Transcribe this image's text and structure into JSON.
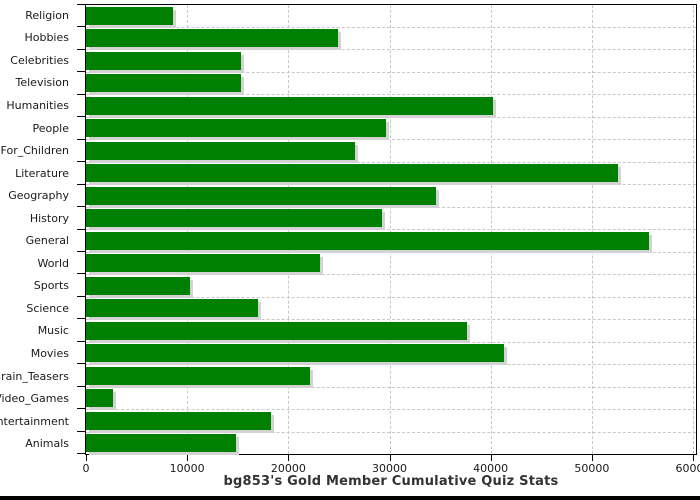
{
  "chart_data": {
    "type": "bar",
    "orientation": "horizontal",
    "title": "bg853's Gold Member Cumulative Quiz Stats",
    "categories": [
      "Religion",
      "Hobbies",
      "Celebrities",
      "Television",
      "Humanities",
      "People",
      "For_Children",
      "Literature",
      "Geography",
      "History",
      "General",
      "World",
      "Sports",
      "Science",
      "Music",
      "Movies",
      "Brain_Teasers",
      "Video_Games",
      "Entertainment",
      "Animals"
    ],
    "values": [
      8600,
      24900,
      15300,
      15300,
      40200,
      29700,
      26600,
      52600,
      34600,
      29300,
      55700,
      23100,
      10300,
      17000,
      37700,
      41300,
      22100,
      2700,
      18300,
      14800
    ],
    "xlabel": "",
    "ylabel": "",
    "xlim": [
      0,
      60000
    ],
    "x_ticks": [
      0,
      10000,
      20000,
      30000,
      40000,
      50000,
      60000
    ],
    "x_tick_labels": [
      "0",
      "10000",
      "20000",
      "30000",
      "40000",
      "50000",
      "60000"
    ],
    "grid": "dashed",
    "legend_position": "none",
    "bar_color": "#008000",
    "bar_shadow_color": "#d3d3d3",
    "grid_color": "#c8c8c8",
    "axis_color": "#000000",
    "title_color": "#333333",
    "background_color": "#ffffff"
  }
}
